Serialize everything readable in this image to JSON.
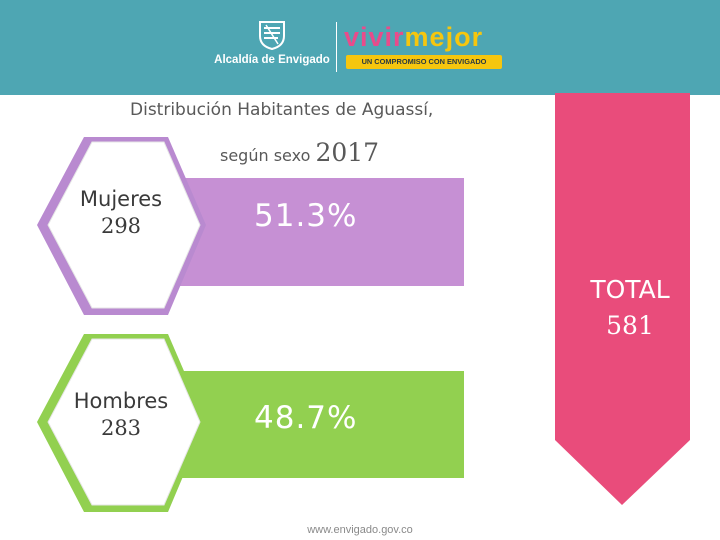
{
  "header": {
    "organization": "Alcaldía de Envigado",
    "brand_part1": "vivir",
    "brand_part2": "mejor",
    "brand_tagline": "UN COMPROMISO CON ENVIGADO",
    "background": "#4ea6b3"
  },
  "title": {
    "line1": "Distribución Habitantes de Aguassí,",
    "line2_text": "según sexo",
    "line2_year": "2017"
  },
  "women": {
    "label": "Mujeres",
    "count": "298",
    "percent_label": "51.3%",
    "color": "#c690d4",
    "hex_color": "#b98ad0"
  },
  "men": {
    "label": "Hombres",
    "count": "283",
    "percent_label": "48.7%",
    "color": "#92d050",
    "hex_color": "#92d050"
  },
  "total": {
    "label": "TOTAL",
    "value": "581",
    "color": "#e94c7b"
  },
  "footer": {
    "website": "www.envigado.gov.co"
  }
}
